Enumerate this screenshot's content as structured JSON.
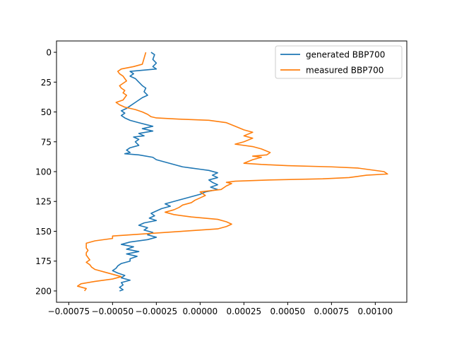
{
  "chart_data": {
    "type": "line",
    "title": "",
    "xlabel": "",
    "ylabel": "",
    "xlim": [
      -0.00082,
      0.00118
    ],
    "ylim": [
      209.5,
      -9.5
    ],
    "y_inverted": true,
    "grid": false,
    "legend_position": "top-right",
    "x_ticks": [
      -0.00075,
      -0.0005,
      -0.00025,
      0.0,
      0.00025,
      0.0005,
      0.00075,
      0.001
    ],
    "x_tick_labels": [
      "−0.00075",
      "−0.00050",
      "−0.00025",
      "0.00000",
      "0.00025",
      "0.00050",
      "0.00075",
      "0.00100"
    ],
    "y_ticks": [
      0,
      25,
      50,
      75,
      100,
      125,
      150,
      175,
      200
    ],
    "y_tick_labels": [
      "0",
      "25",
      "50",
      "75",
      "100",
      "125",
      "150",
      "175",
      "200"
    ],
    "series": [
      {
        "name": "generated BBP700",
        "color": "#1f77b4",
        "points": [
          [
            -0.00028,
            0
          ],
          [
            -0.00026,
            2
          ],
          [
            -0.00027,
            6
          ],
          [
            -0.00025,
            9
          ],
          [
            -0.00027,
            12
          ],
          [
            -0.00025,
            14
          ],
          [
            -0.0004,
            16
          ],
          [
            -0.00038,
            18
          ],
          [
            -0.0004,
            20
          ],
          [
            -0.00037,
            22
          ],
          [
            -0.00035,
            25
          ],
          [
            -0.00033,
            28
          ],
          [
            -0.00031,
            30
          ],
          [
            -0.00032,
            33
          ],
          [
            -0.0003,
            36
          ],
          [
            -0.00033,
            38
          ],
          [
            -0.00035,
            40
          ],
          [
            -0.00037,
            42
          ],
          [
            -0.0004,
            45
          ],
          [
            -0.00042,
            47
          ],
          [
            -0.00045,
            49
          ],
          [
            -0.00043,
            51
          ],
          [
            -0.00045,
            53
          ],
          [
            -0.00043,
            55
          ],
          [
            -0.0004,
            57
          ],
          [
            -0.00035,
            59
          ],
          [
            -0.00027,
            62
          ],
          [
            -0.00033,
            64
          ],
          [
            -0.00027,
            66
          ],
          [
            -0.00035,
            68
          ],
          [
            -0.00032,
            70
          ],
          [
            -0.00038,
            71
          ],
          [
            -0.00035,
            73
          ],
          [
            -0.00037,
            75
          ],
          [
            -0.00035,
            78
          ],
          [
            -0.0004,
            80
          ],
          [
            -0.00042,
            82
          ],
          [
            -0.0004,
            84
          ],
          [
            -0.00043,
            85
          ],
          [
            -0.00035,
            86
          ],
          [
            -0.00027,
            88
          ],
          [
            -0.00025,
            90
          ],
          [
            -0.0002,
            92
          ],
          [
            -0.00015,
            94
          ],
          [
            -0.0001,
            96
          ],
          [
            -5e-05,
            97
          ],
          [
            0.0,
            98
          ],
          [
            5e-05,
            99
          ],
          [
            0.0001,
            101
          ],
          [
            7e-05,
            103
          ],
          [
            0.0001,
            105
          ],
          [
            5e-05,
            107
          ],
          [
            7e-05,
            109
          ],
          [
            0.0001,
            111
          ],
          [
            6e-05,
            113
          ],
          [
            0.0001,
            115
          ],
          [
            3e-05,
            117
          ],
          [
            0.0,
            119
          ],
          [
            -5e-05,
            121
          ],
          [
            -0.0001,
            123
          ],
          [
            -0.00015,
            125
          ],
          [
            -0.0002,
            127
          ],
          [
            -0.00017,
            129
          ],
          [
            -0.00022,
            131
          ],
          [
            -0.00025,
            133
          ],
          [
            -0.00028,
            135
          ],
          [
            -0.00026,
            137
          ],
          [
            -0.00029,
            139
          ],
          [
            -0.00025,
            141
          ],
          [
            -0.00032,
            143
          ],
          [
            -0.00035,
            145
          ],
          [
            -0.0003,
            147
          ],
          [
            -0.00032,
            149
          ],
          [
            -0.00027,
            151
          ],
          [
            -0.0003,
            153
          ],
          [
            -0.00025,
            155
          ],
          [
            -0.0003,
            157
          ],
          [
            -0.0004,
            159
          ],
          [
            -0.00045,
            161
          ],
          [
            -0.00038,
            163
          ],
          [
            -0.00042,
            165
          ],
          [
            -0.00035,
            167
          ],
          [
            -0.00042,
            169
          ],
          [
            -0.00036,
            171
          ],
          [
            -0.0004,
            173
          ],
          [
            -0.0004,
            175
          ],
          [
            -0.00045,
            177
          ],
          [
            -0.00047,
            179
          ],
          [
            -0.00048,
            181
          ],
          [
            -0.0005,
            183
          ],
          [
            -0.00047,
            185
          ],
          [
            -0.00043,
            187
          ],
          [
            -0.00045,
            189
          ],
          [
            -0.0004,
            191
          ],
          [
            -0.00045,
            193
          ],
          [
            -0.00044,
            195
          ],
          [
            -0.00046,
            197
          ],
          [
            -0.00044,
            199
          ],
          [
            -0.00046,
            200
          ]
        ]
      },
      {
        "name": "measured BBP700",
        "color": "#ff7f0e",
        "points": [
          [
            -0.00031,
            0
          ],
          [
            -0.00032,
            5
          ],
          [
            -0.00033,
            10
          ],
          [
            -0.00038,
            12
          ],
          [
            -0.00045,
            14
          ],
          [
            -0.00047,
            16
          ],
          [
            -0.00046,
            18
          ],
          [
            -0.00044,
            20
          ],
          [
            -0.00043,
            22
          ],
          [
            -0.00042,
            24
          ],
          [
            -0.00044,
            26
          ],
          [
            -0.00046,
            28
          ],
          [
            -0.00045,
            30
          ],
          [
            -0.00043,
            32
          ],
          [
            -0.00044,
            34
          ],
          [
            -0.00042,
            36
          ],
          [
            -0.00043,
            38
          ],
          [
            -0.00044,
            40
          ],
          [
            -0.00048,
            42
          ],
          [
            -0.00046,
            44
          ],
          [
            -0.00043,
            46
          ],
          [
            -0.00037,
            48
          ],
          [
            -0.00033,
            50
          ],
          [
            -0.0003,
            52
          ],
          [
            -0.00028,
            54
          ],
          [
            -0.00025,
            55
          ],
          [
            -0.00012,
            56
          ],
          [
            5e-05,
            57
          ],
          [
            0.00015,
            59
          ],
          [
            0.0002,
            62
          ],
          [
            0.00025,
            65
          ],
          [
            0.0003,
            67
          ],
          [
            0.00025,
            70
          ],
          [
            0.0003,
            72
          ],
          [
            0.00025,
            75
          ],
          [
            0.0002,
            77
          ],
          [
            0.0003,
            79
          ],
          [
            0.00035,
            81
          ],
          [
            0.0004,
            84
          ],
          [
            0.00038,
            86
          ],
          [
            0.0003,
            87
          ],
          [
            0.00035,
            88
          ],
          [
            0.0003,
            90
          ],
          [
            0.00025,
            93
          ],
          [
            0.00035,
            94
          ],
          [
            0.0005,
            95
          ],
          [
            0.00075,
            96
          ],
          [
            0.0009,
            97
          ],
          [
            0.00095,
            98
          ],
          [
            0.00105,
            100
          ],
          [
            0.00107,
            102
          ],
          [
            0.00095,
            103
          ],
          [
            0.00085,
            105
          ],
          [
            0.0007,
            106
          ],
          [
            0.0004,
            107
          ],
          [
            0.0002,
            108
          ],
          [
            0.00015,
            109
          ],
          [
            0.00018,
            110
          ],
          [
            0.00015,
            112
          ],
          [
            0.00012,
            115
          ],
          [
            0.0,
            117
          ],
          [
            3e-05,
            120
          ],
          [
            0.0,
            122
          ],
          [
            -3e-05,
            124
          ],
          [
            -5e-05,
            126
          ],
          [
            -0.0001,
            128
          ],
          [
            -0.00012,
            130
          ],
          [
            -0.00015,
            132
          ],
          [
            -0.0002,
            134
          ],
          [
            -0.00015,
            136
          ],
          [
            -5e-05,
            138
          ],
          [
            0.0001,
            140
          ],
          [
            0.00015,
            142
          ],
          [
            0.00018,
            144
          ],
          [
            0.00015,
            146
          ],
          [
            0.0001,
            148
          ],
          [
            -0.0001,
            150
          ],
          [
            -0.0003,
            152
          ],
          [
            -0.0005,
            154
          ],
          [
            -0.0005,
            156
          ],
          [
            -0.0006,
            158
          ],
          [
            -0.00065,
            160
          ],
          [
            -0.00065,
            162
          ],
          [
            -0.00065,
            164
          ],
          [
            -0.00064,
            166
          ],
          [
            -0.00065,
            168
          ],
          [
            -0.00065,
            170
          ],
          [
            -0.00064,
            172
          ],
          [
            -0.00063,
            174
          ],
          [
            -0.00065,
            176
          ],
          [
            -0.00063,
            178
          ],
          [
            -0.00062,
            180
          ],
          [
            -0.0006,
            182
          ],
          [
            -0.00055,
            184
          ],
          [
            -0.0005,
            186
          ],
          [
            -0.00045,
            188
          ],
          [
            -0.0005,
            190
          ],
          [
            -0.0006,
            192
          ],
          [
            -0.00068,
            194
          ],
          [
            -0.0007,
            196
          ],
          [
            -0.00065,
            198
          ],
          [
            -0.00066,
            200
          ]
        ]
      }
    ]
  }
}
